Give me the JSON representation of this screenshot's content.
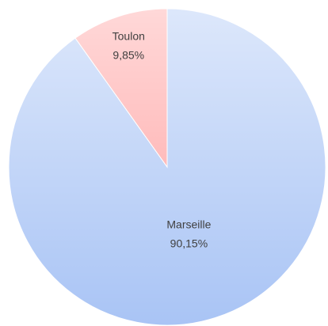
{
  "chart_data": {
    "type": "pie",
    "categories": [
      "Marseille",
      "Toulon"
    ],
    "values": [
      90.15,
      9.85
    ],
    "value_labels": [
      "90,15%",
      "9,85%"
    ],
    "colors": [
      "#a9c4f5",
      "#ff9e9e"
    ]
  }
}
